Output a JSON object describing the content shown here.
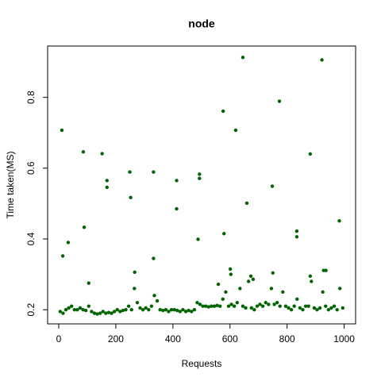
{
  "chart_data": {
    "type": "scatter",
    "title": "node",
    "x_label": "Requests",
    "y_label": "Time taken(MS)",
    "color": "#006400",
    "xlim": [
      -39,
      1040
    ],
    "ylim": [
      0.16,
      0.945
    ],
    "xticks": [
      0,
      200,
      400,
      600,
      800,
      1000
    ],
    "yticks": [
      0.2,
      0.4,
      0.6,
      0.8
    ],
    "x": [
      5,
      15,
      25,
      35,
      45,
      55,
      65,
      75,
      85,
      95,
      105,
      115,
      125,
      135,
      145,
      155,
      165,
      175,
      185,
      195,
      205,
      215,
      225,
      235,
      245,
      255,
      265,
      275,
      285,
      295,
      305,
      315,
      325,
      335,
      345,
      355,
      365,
      375,
      385,
      395,
      405,
      415,
      425,
      435,
      445,
      455,
      465,
      475,
      485,
      495,
      505,
      515,
      525,
      535,
      545,
      555,
      565,
      575,
      585,
      595,
      605,
      615,
      625,
      635,
      645,
      655,
      665,
      675,
      685,
      695,
      705,
      715,
      725,
      735,
      745,
      755,
      765,
      775,
      785,
      795,
      805,
      815,
      825,
      835,
      845,
      855,
      865,
      875,
      885,
      895,
      905,
      915,
      925,
      935,
      945,
      955,
      965,
      975,
      985,
      995,
      11,
      14,
      33,
      86,
      89,
      105,
      152,
      169,
      169,
      249,
      252,
      266,
      332,
      332,
      413,
      413,
      488,
      493,
      493,
      576,
      579,
      620,
      645,
      659,
      773,
      748,
      834,
      834,
      881,
      922,
      983,
      601,
      603,
      928,
      936,
      881,
      750,
      673,
      681,
      559
    ],
    "values": [
      0.195,
      0.19,
      0.2,
      0.205,
      0.21,
      0.2,
      0.2,
      0.205,
      0.2,
      0.198,
      0.21,
      0.195,
      0.19,
      0.188,
      0.19,
      0.195,
      0.19,
      0.192,
      0.19,
      0.195,
      0.2,
      0.195,
      0.198,
      0.2,
      0.21,
      0.2,
      0.26,
      0.22,
      0.205,
      0.2,
      0.205,
      0.2,
      0.21,
      0.24,
      0.225,
      0.2,
      0.198,
      0.2,
      0.195,
      0.2,
      0.2,
      0.198,
      0.195,
      0.2,
      0.195,
      0.198,
      0.195,
      0.2,
      0.22,
      0.215,
      0.21,
      0.21,
      0.208,
      0.21,
      0.21,
      0.212,
      0.21,
      0.23,
      0.25,
      0.21,
      0.215,
      0.21,
      0.22,
      0.26,
      0.21,
      0.205,
      0.28,
      0.205,
      0.2,
      0.21,
      0.215,
      0.21,
      0.22,
      0.215,
      0.26,
      0.215,
      0.22,
      0.21,
      0.25,
      0.21,
      0.205,
      0.2,
      0.21,
      0.23,
      0.205,
      0.2,
      0.21,
      0.21,
      0.28,
      0.205,
      0.2,
      0.205,
      0.25,
      0.21,
      0.2,
      0.205,
      0.21,
      0.2,
      0.26,
      0.205,
      0.707,
      0.352,
      0.39,
      0.646,
      0.433,
      0.275,
      0.641,
      0.565,
      0.546,
      0.589,
      0.517,
      0.306,
      0.589,
      0.345,
      0.565,
      0.485,
      0.399,
      0.583,
      0.571,
      0.761,
      0.415,
      0.707,
      0.913,
      0.501,
      0.789,
      0.549,
      0.422,
      0.406,
      0.64,
      0.906,
      0.451,
      0.315,
      0.3,
      0.311,
      0.311,
      0.295,
      0.304,
      0.295,
      0.286,
      0.272
    ]
  }
}
